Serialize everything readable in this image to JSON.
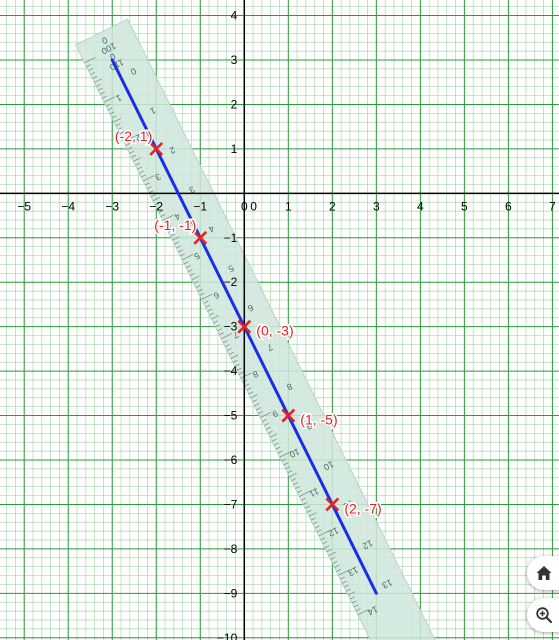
{
  "graph": {
    "x_range": [
      -5.55,
      7.15
    ],
    "y_range": [
      -10.05,
      4.35
    ],
    "x_tick_labels": [
      "−5",
      "−4",
      "−3",
      "−2",
      "−1",
      "0",
      "1",
      "2",
      "3",
      "4",
      "5",
      "6",
      "7"
    ],
    "x_tick_values": [
      -5,
      -4,
      -3,
      -2,
      -1,
      0,
      1,
      2,
      3,
      4,
      5,
      6,
      7
    ],
    "y_tick_labels": [
      "4",
      "3",
      "2",
      "1",
      "−1",
      "−2",
      "−3",
      "−4",
      "−5",
      "−6",
      "−7",
      "−8",
      "−9",
      "−10"
    ],
    "y_tick_values": [
      4,
      3,
      2,
      1,
      -1,
      -2,
      -3,
      -4,
      -5,
      -6,
      -7,
      -8,
      -9,
      -10
    ],
    "minor_grid_step": 0.2,
    "grid_color": "#2e9b3a",
    "minor_grid_color": "#a8d8ab",
    "axis_color": "#000000"
  },
  "line": {
    "color": "#1a2ee8",
    "from": [
      -3,
      3
    ],
    "to": [
      3,
      -9
    ]
  },
  "points": [
    {
      "label": "(-2, 1)",
      "x": -2,
      "y": 1,
      "label_side": "left"
    },
    {
      "label": "(-1, -1)",
      "x": -1,
      "y": -1,
      "label_side": "left"
    },
    {
      "label": "(0, -3)",
      "x": 0,
      "y": -3,
      "label_side": "right"
    },
    {
      "label": "(1, -5)",
      "x": 1,
      "y": -5,
      "label_side": "right"
    },
    {
      "label": "(2, -7)",
      "x": 2,
      "y": -7,
      "label_side": "right"
    }
  ],
  "point_color": "#e82020",
  "ruler": {
    "fill": "#cfe6dc",
    "cm_labels": [
      "1",
      "2",
      "3",
      "4",
      "5",
      "6",
      "7",
      "8",
      "9",
      "10",
      "11",
      "12",
      "13",
      "14"
    ],
    "inner_labels": [
      "0",
      "1",
      "2",
      "3",
      "4",
      "5",
      "6",
      "7",
      "8",
      "9",
      "10",
      "11",
      "12",
      "13"
    ],
    "end_labels": [
      "0",
      "100",
      "0",
      "110"
    ]
  },
  "controls": {
    "home_icon": "home-icon",
    "zoom_icon": "zoom-in-icon"
  }
}
